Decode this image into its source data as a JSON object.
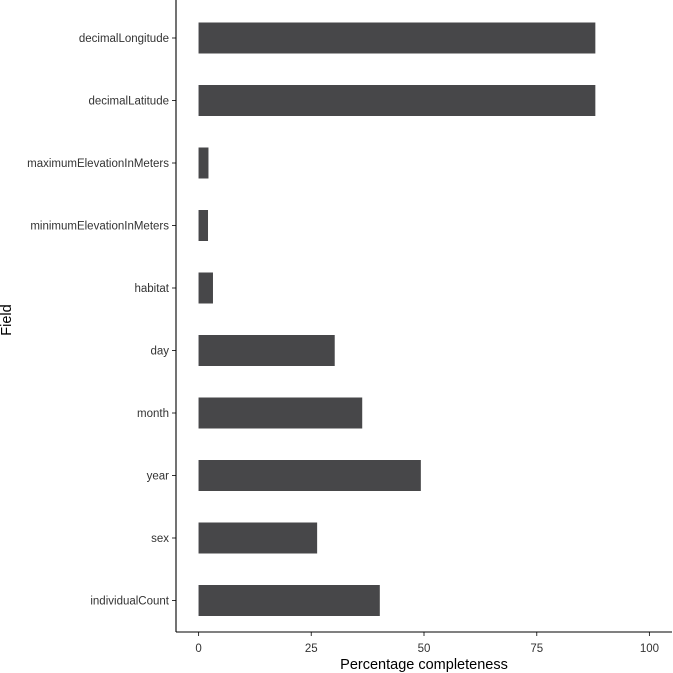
{
  "chart_data": {
    "type": "bar",
    "orientation": "horizontal",
    "title": "",
    "xlabel": "Percentage completeness",
    "ylabel": "Field",
    "xlim": [
      -5,
      105
    ],
    "xticks": [
      0,
      25,
      50,
      75,
      100
    ],
    "grid": false,
    "bar_color": "#474749",
    "categories": [
      "decimalLongitude",
      "decimalLatitude",
      "maximumElevationInMeters",
      "minimumElevationInMeters",
      "habitat",
      "day",
      "month",
      "year",
      "sex",
      "individualCount"
    ],
    "values": [
      88,
      88,
      2.2,
      2.1,
      3.2,
      30.2,
      36.3,
      49.3,
      26.3,
      40.2
    ]
  }
}
